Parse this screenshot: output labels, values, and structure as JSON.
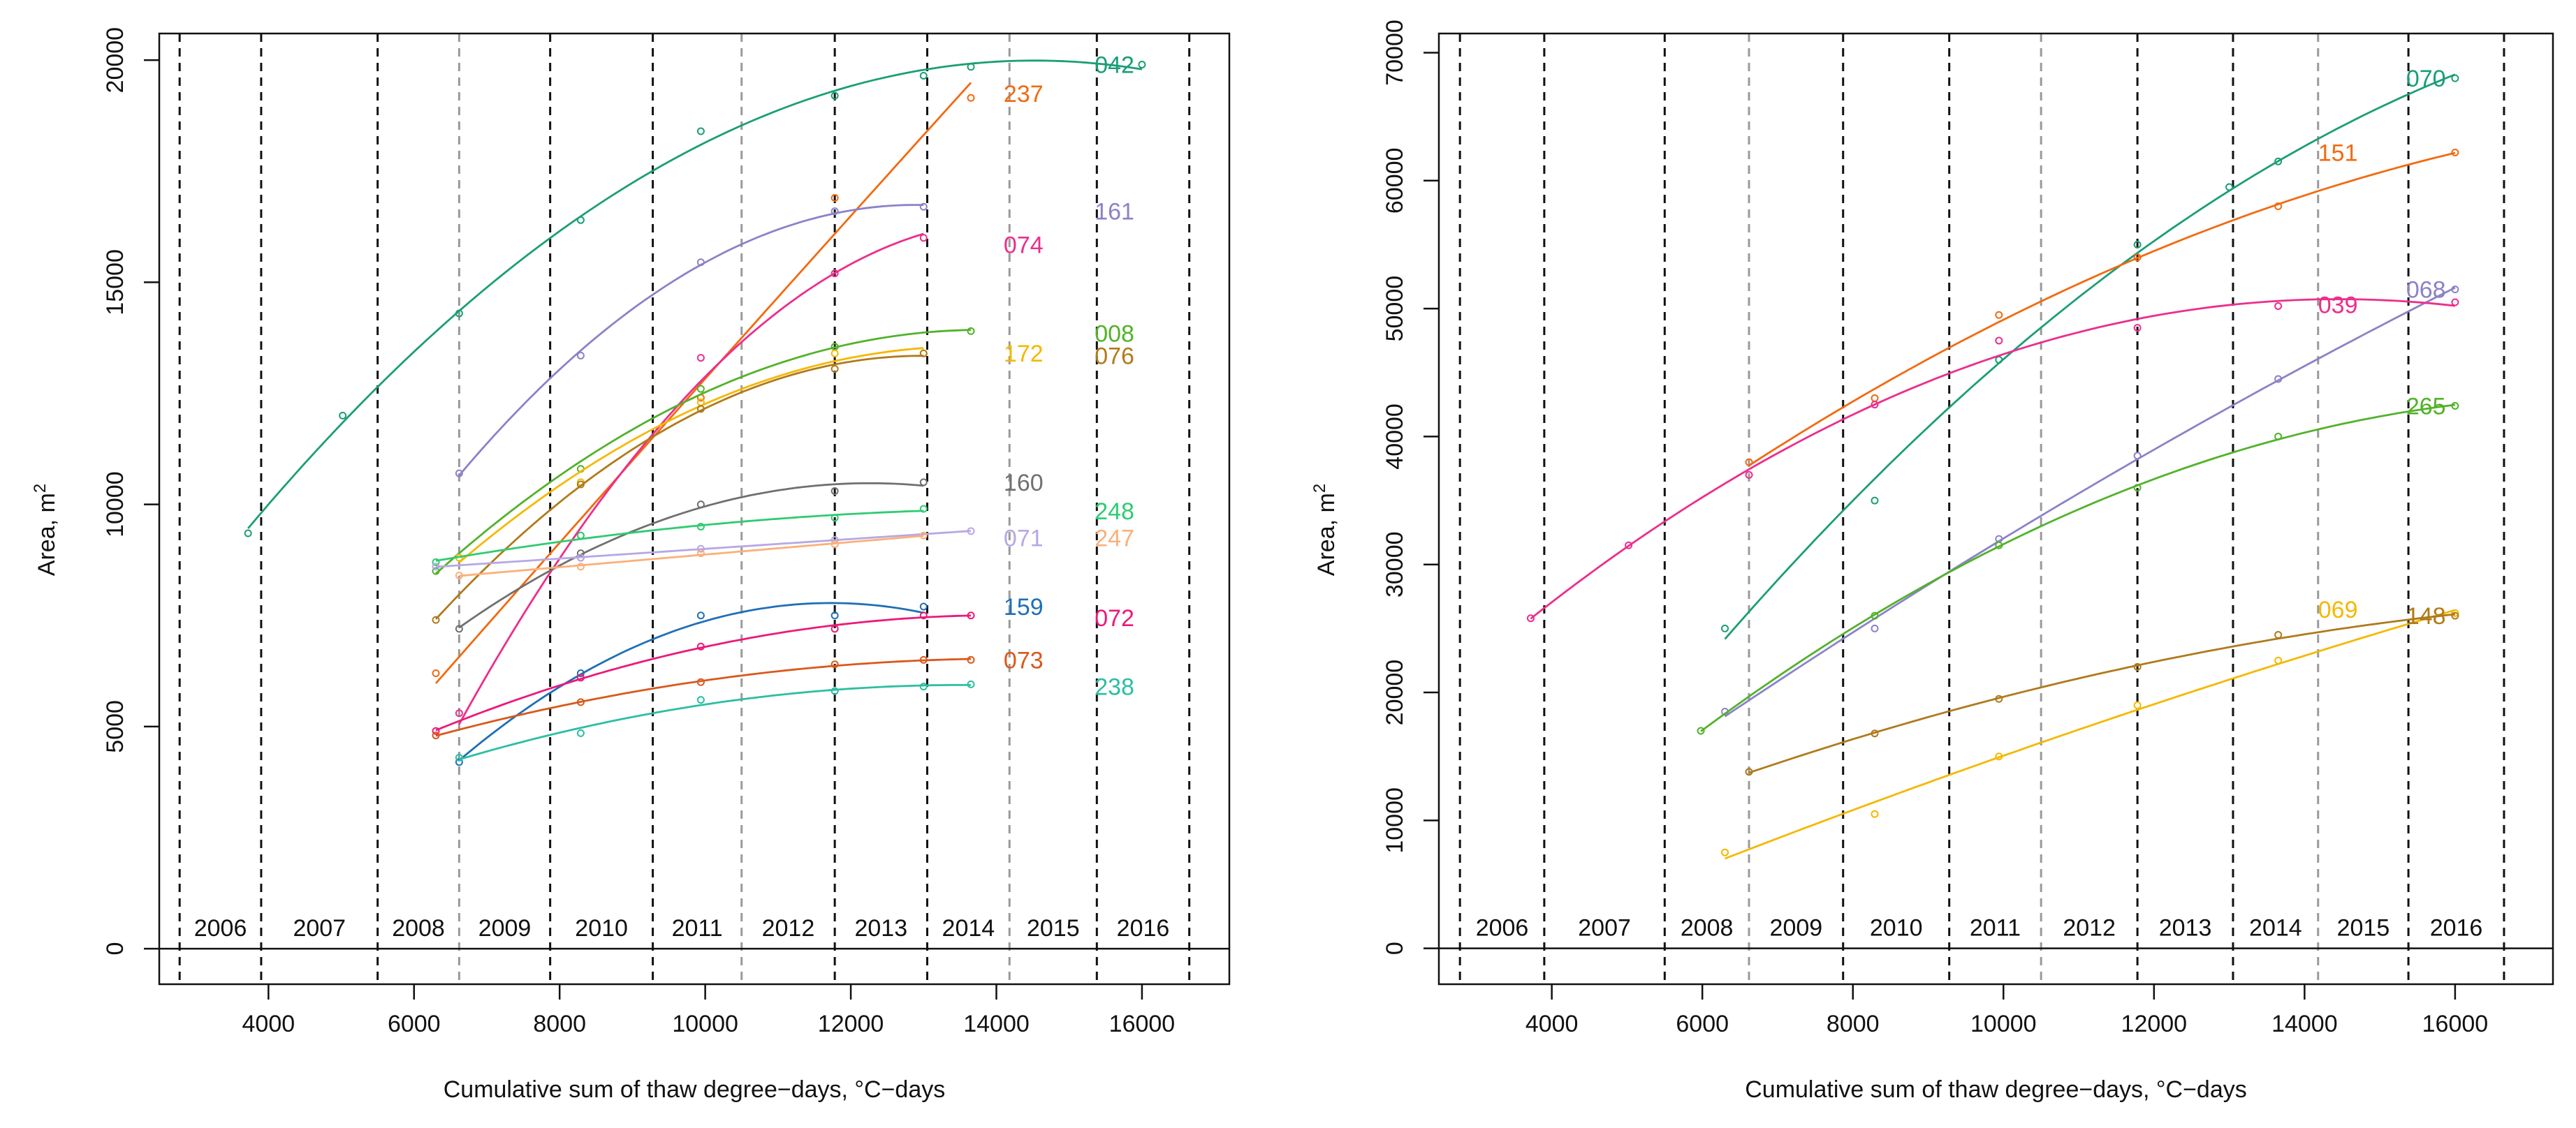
{
  "chart_data": [
    {
      "type": "line",
      "id": "left",
      "xlabel": "Cumulative sum of thaw degree−days, °C−days",
      "ylabel": "Area, m",
      "ylabel_sup": "2",
      "xlim": [
        2500,
        17200
      ],
      "ylim": [
        -800,
        20600
      ],
      "x_ticks": [
        4000,
        6000,
        8000,
        10000,
        12000,
        14000,
        16000
      ],
      "y_ticks": [
        0,
        5000,
        10000,
        15000,
        20000
      ],
      "years": [
        {
          "label": "2006",
          "x0": 2780,
          "x1": 3900
        },
        {
          "label": "2007",
          "x0": 3900,
          "x1": 5500
        },
        {
          "label": "2008",
          "x0": 5500,
          "x1": 6620
        },
        {
          "label": "2009",
          "x0": 6620,
          "x1": 7870
        },
        {
          "label": "2010",
          "x0": 7870,
          "x1": 9280
        },
        {
          "label": "2011",
          "x0": 9280,
          "x1": 10500
        },
        {
          "label": "2012",
          "x0": 10500,
          "x1": 11780
        },
        {
          "label": "2013",
          "x0": 11780,
          "x1": 13050
        },
        {
          "label": "2014",
          "x0": 13050,
          "x1": 14180
        },
        {
          "label": "2015",
          "x0": 14180,
          "x1": 15380
        },
        {
          "label": "2016",
          "x0": 15380,
          "x1": 16650
        }
      ],
      "boundaries": [
        {
          "x": 2780,
          "style": "dark"
        },
        {
          "x": 3900,
          "style": "dark"
        },
        {
          "x": 5500,
          "style": "dark"
        },
        {
          "x": 6620,
          "style": "grey"
        },
        {
          "x": 7870,
          "style": "dark"
        },
        {
          "x": 9280,
          "style": "dark"
        },
        {
          "x": 10500,
          "style": "grey"
        },
        {
          "x": 11780,
          "style": "dark"
        },
        {
          "x": 13050,
          "style": "dark"
        },
        {
          "x": 14180,
          "style": "grey"
        },
        {
          "x": 15380,
          "style": "dark"
        },
        {
          "x": 16650,
          "style": "dark"
        }
      ],
      "series": [
        {
          "name": "042",
          "color": "#1b9e77",
          "x": [
            3720,
            5020,
            6620,
            8290,
            9940,
            11780,
            13000,
            13650,
            16000
          ],
          "y": [
            9350,
            12000,
            14300,
            16400,
            18400,
            19200,
            19650,
            19850,
            19900
          ],
          "label_x": 15350,
          "label_y": 19900
        },
        {
          "name": "237",
          "color": "#f26a10",
          "x": [
            6300,
            8290,
            9940,
            11780,
            13650
          ],
          "y": [
            6200,
            9300,
            12400,
            16900,
            19150
          ],
          "label_x": 14100,
          "label_y": 19250
        },
        {
          "name": "161",
          "color": "#8b82c8",
          "x": [
            6620,
            8290,
            9940,
            11780,
            13000
          ],
          "y": [
            10700,
            13350,
            15450,
            16600,
            16700
          ],
          "label_x": 15350,
          "label_y": 16600
        },
        {
          "name": "074",
          "color": "#ec2e8c",
          "x": [
            6620,
            8290,
            9940,
            11780,
            13000
          ],
          "y": [
            5300,
            8800,
            13300,
            15200,
            16000
          ],
          "label_x": 14100,
          "label_y": 15850
        },
        {
          "name": "008",
          "color": "#52b22a",
          "x": [
            6300,
            8290,
            9940,
            11780,
            13650
          ],
          "y": [
            8500,
            10800,
            12600,
            13550,
            13900
          ],
          "label_x": 15350,
          "label_y": 13850
        },
        {
          "name": "172",
          "color": "#f5b800",
          "x": [
            6620,
            8290,
            9940,
            11780,
            13000
          ],
          "y": [
            8800,
            10500,
            12300,
            13400,
            13400
          ],
          "label_x": 14100,
          "label_y": 13400
        },
        {
          "name": "076",
          "color": "#b07a1b",
          "x": [
            6300,
            8290,
            9940,
            11780,
            13000
          ],
          "y": [
            7400,
            10450,
            12150,
            13050,
            13400
          ],
          "label_x": 15350,
          "label_y": 13350
        },
        {
          "name": "160",
          "color": "#707070",
          "x": [
            6620,
            8290,
            9940,
            11780,
            13000
          ],
          "y": [
            7200,
            8900,
            10000,
            10300,
            10500
          ],
          "label_x": 14100,
          "label_y": 10500
        },
        {
          "name": "248",
          "color": "#2ecc71",
          "x": [
            6300,
            8290,
            9940,
            11780,
            13000
          ],
          "y": [
            8700,
            9300,
            9500,
            9700,
            9900
          ],
          "label_x": 15350,
          "label_y": 9850
        },
        {
          "name": "071",
          "color": "#b7a8e4",
          "x": [
            6300,
            8290,
            9940,
            11780,
            13650
          ],
          "y": [
            8600,
            8800,
            9000,
            9200,
            9400
          ],
          "label_x": 14100,
          "label_y": 9250
        },
        {
          "name": "247",
          "color": "#fbb07a",
          "x": [
            6620,
            8290,
            9940,
            11780,
            13000
          ],
          "y": [
            8400,
            8600,
            8900,
            9100,
            9300
          ],
          "label_x": 15350,
          "label_y": 9250
        },
        {
          "name": "159",
          "color": "#1f6fb8",
          "x": [
            6620,
            8290,
            9940,
            11780,
            13000
          ],
          "y": [
            4200,
            6200,
            7500,
            7500,
            7700
          ],
          "label_x": 14100,
          "label_y": 7700
        },
        {
          "name": "072",
          "color": "#ec1a79",
          "x": [
            6300,
            8290,
            9940,
            11780,
            13000,
            13650
          ],
          "y": [
            4900,
            6100,
            6800,
            7200,
            7500,
            7500
          ],
          "label_x": 15350,
          "label_y": 7450
        },
        {
          "name": "073",
          "color": "#d9591c",
          "x": [
            6300,
            8290,
            9940,
            11780,
            13000,
            13650
          ],
          "y": [
            4800,
            5550,
            6000,
            6400,
            6500,
            6500
          ],
          "label_x": 14100,
          "label_y": 6500
        },
        {
          "name": "238",
          "color": "#2bbfa2",
          "x": [
            6620,
            8290,
            9940,
            11780,
            13000,
            13650
          ],
          "y": [
            4300,
            4850,
            5600,
            5800,
            5900,
            5950
          ],
          "label_x": 15350,
          "label_y": 5900
        }
      ]
    },
    {
      "type": "line",
      "id": "right",
      "xlabel": "Cumulative sum of thaw degree−days, °C−days",
      "ylabel": "Area, m",
      "ylabel_sup": "2",
      "xlim": [
        2500,
        17300
      ],
      "ylim": [
        -2800,
        71500
      ],
      "x_ticks": [
        4000,
        6000,
        8000,
        10000,
        12000,
        14000,
        16000
      ],
      "y_ticks": [
        0,
        10000,
        20000,
        30000,
        40000,
        50000,
        60000,
        70000
      ],
      "years": [
        {
          "label": "2006",
          "x0": 2780,
          "x1": 3900
        },
        {
          "label": "2007",
          "x0": 3900,
          "x1": 5500
        },
        {
          "label": "2008",
          "x0": 5500,
          "x1": 6620
        },
        {
          "label": "2009",
          "x0": 6620,
          "x1": 7870
        },
        {
          "label": "2010",
          "x0": 7870,
          "x1": 9280
        },
        {
          "label": "2011",
          "x0": 9280,
          "x1": 10500
        },
        {
          "label": "2012",
          "x0": 10500,
          "x1": 11780
        },
        {
          "label": "2013",
          "x0": 11780,
          "x1": 13050
        },
        {
          "label": "2014",
          "x0": 13050,
          "x1": 14180
        },
        {
          "label": "2015",
          "x0": 14180,
          "x1": 15380
        },
        {
          "label": "2016",
          "x0": 15380,
          "x1": 16650
        }
      ],
      "boundaries": [
        {
          "x": 2780,
          "style": "dark"
        },
        {
          "x": 3900,
          "style": "dark"
        },
        {
          "x": 5500,
          "style": "dark"
        },
        {
          "x": 6620,
          "style": "grey"
        },
        {
          "x": 7870,
          "style": "dark"
        },
        {
          "x": 9280,
          "style": "dark"
        },
        {
          "x": 10500,
          "style": "grey"
        },
        {
          "x": 11780,
          "style": "dark"
        },
        {
          "x": 13050,
          "style": "dark"
        },
        {
          "x": 14180,
          "style": "grey"
        },
        {
          "x": 15380,
          "style": "dark"
        },
        {
          "x": 16650,
          "style": "dark"
        }
      ],
      "series": [
        {
          "name": "070",
          "color": "#1b9e77",
          "x": [
            6300,
            8290,
            9940,
            11780,
            13000,
            13650,
            16000
          ],
          "y": [
            25000,
            35000,
            46000,
            55000,
            59500,
            61500,
            68000
          ],
          "label_x": 15350,
          "label_y": 68000
        },
        {
          "name": "151",
          "color": "#f26a10",
          "x": [
            6620,
            8290,
            9940,
            11780,
            13650,
            16000
          ],
          "y": [
            38000,
            43000,
            49500,
            54000,
            58000,
            62200
          ],
          "label_x": 14180,
          "label_y": 62200
        },
        {
          "name": "068",
          "color": "#8b82c8",
          "x": [
            6300,
            8290,
            9940,
            11780,
            13650,
            16000
          ],
          "y": [
            18500,
            25000,
            32000,
            38500,
            44500,
            51500
          ],
          "label_x": 15350,
          "label_y": 51500
        },
        {
          "name": "039",
          "color": "#ec2e8c",
          "x": [
            3720,
            5020,
            6620,
            8290,
            9940,
            11780,
            13650,
            16000
          ],
          "y": [
            25800,
            31500,
            37000,
            42500,
            47500,
            48500,
            50200,
            50500
          ],
          "label_x": 14180,
          "label_y": 50300
        },
        {
          "name": "265",
          "color": "#52b22a",
          "x": [
            5980,
            8290,
            9940,
            11780,
            13650,
            16000
          ],
          "y": [
            17000,
            26000,
            31500,
            36000,
            40000,
            42400
          ],
          "label_x": 15350,
          "label_y": 42400
        },
        {
          "name": "069",
          "color": "#f5b800",
          "x": [
            6300,
            8290,
            9940,
            11780,
            13650,
            16000
          ],
          "y": [
            7500,
            10500,
            15000,
            19000,
            22500,
            26200
          ],
          "label_x": 14180,
          "label_y": 26500
        },
        {
          "name": "148",
          "color": "#b07a1b",
          "x": [
            6620,
            8290,
            9940,
            11780,
            13650,
            16000
          ],
          "y": [
            13800,
            16800,
            19500,
            22000,
            24500,
            26000
          ],
          "label_x": 15350,
          "label_y": 26000
        }
      ]
    }
  ]
}
